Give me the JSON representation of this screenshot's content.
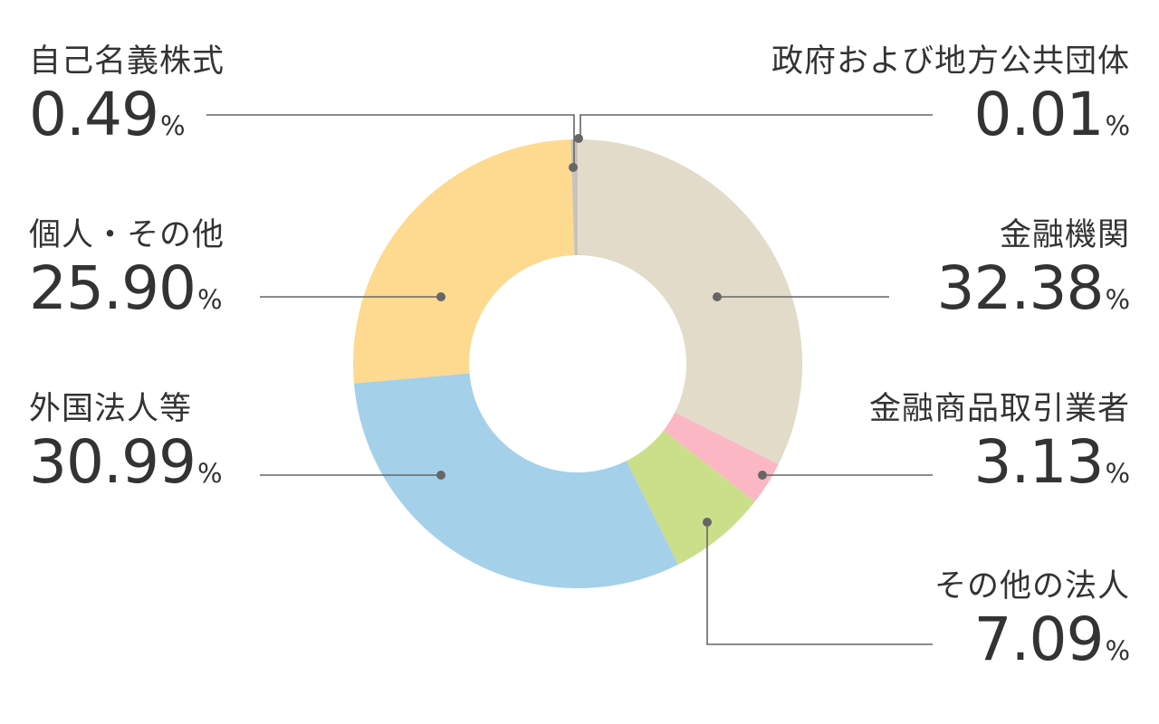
{
  "chart_data": {
    "type": "pie",
    "donut": true,
    "title": "",
    "unit": "%",
    "direction": "clockwise",
    "start_angle": "top",
    "slices": [
      {
        "label": "政府および地方公共団体",
        "value": 0.01,
        "display": "0.01",
        "color": "#e2dbc9"
      },
      {
        "label": "金融機関",
        "value": 32.38,
        "display": "32.38",
        "color": "#e2dbc9"
      },
      {
        "label": "金融商品取引業者",
        "value": 3.13,
        "display": "3.13",
        "color": "#fbb7c4"
      },
      {
        "label": "その他の法人",
        "value": 7.09,
        "display": "7.09",
        "color": "#cbdf8a"
      },
      {
        "label": "外国法人等",
        "value": 30.99,
        "display": "30.99",
        "color": "#a4d0ea"
      },
      {
        "label": "個人・その他",
        "value": 25.9,
        "display": "25.90",
        "color": "#fdda90"
      },
      {
        "label": "自己名義株式",
        "value": 0.49,
        "display": "0.49",
        "color": "#c8c4bc"
      }
    ],
    "leader_color": "#666666"
  }
}
